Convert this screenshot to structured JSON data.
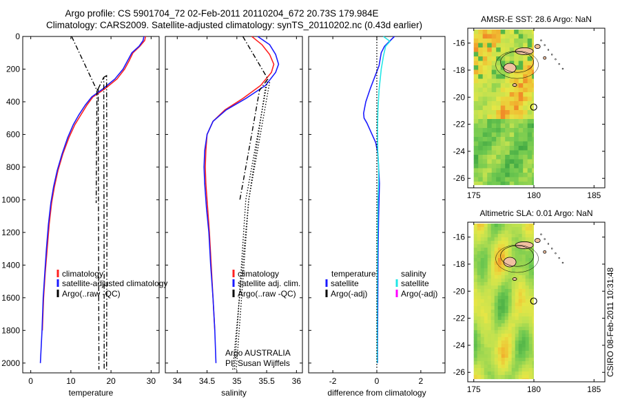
{
  "header": {
    "line1": "Argo profile: CS 5901704_72 02-Feb-2011 20110204_672 20.73S 179.984E",
    "line2": "Climatology: CARS2009. Satellite-adjusted climatology: synTS_20110202.nc (0.43d earlier)"
  },
  "stamp": "CSIRO 08-Feb-2011 10:31:48",
  "colors": {
    "climatology": "#ff2020",
    "satellite": "#1a1aff",
    "argo": "#000000",
    "sal_satellite": "#22e6e6",
    "sal_argo": "#ff00ff"
  },
  "chart_data": [
    {
      "type": "line",
      "panel": "temperature",
      "xlabel": "temperature",
      "xlim": [
        -2,
        32
      ],
      "ylim": [
        2060,
        0
      ],
      "y_reversed": true,
      "xticks": [
        0,
        10,
        20,
        30
      ],
      "yticks": [
        0,
        200,
        400,
        600,
        800,
        1000,
        1200,
        1400,
        1600,
        1800,
        2000
      ],
      "legend": [
        "climatology",
        "satellite-adjusted climatology",
        "Argo(..raw -QC)"
      ],
      "series": [
        {
          "name": "climatology",
          "style": "solid",
          "color": "#ff2020",
          "points": [
            [
              28.6,
              0
            ],
            [
              28.4,
              25
            ],
            [
              27.2,
              60
            ],
            [
              25.5,
              100
            ],
            [
              24.5,
              150
            ],
            [
              23.4,
              200
            ],
            [
              21.5,
              260
            ],
            [
              18.5,
              320
            ],
            [
              15.5,
              370
            ],
            [
              14,
              420
            ],
            [
              12.5,
              480
            ],
            [
              11,
              540
            ],
            [
              9.5,
              620
            ],
            [
              8,
              720
            ],
            [
              6.8,
              820
            ],
            [
              5.9,
              920
            ],
            [
              5.2,
              1020
            ],
            [
              4.6,
              1150
            ],
            [
              4.1,
              1300
            ],
            [
              3.6,
              1450
            ],
            [
              3.2,
              1600
            ],
            [
              2.9,
              1800
            ]
          ]
        },
        {
          "name": "satellite-adjusted climatology",
          "style": "solid",
          "color": "#1a1aff",
          "points": [
            [
              28.2,
              0
            ],
            [
              28,
              25
            ],
            [
              27,
              60
            ],
            [
              25.2,
              100
            ],
            [
              24.1,
              150
            ],
            [
              23,
              200
            ],
            [
              21,
              260
            ],
            [
              18,
              320
            ],
            [
              15.2,
              370
            ],
            [
              13.6,
              420
            ],
            [
              12,
              480
            ],
            [
              10.6,
              540
            ],
            [
              9.2,
              620
            ],
            [
              7.8,
              720
            ],
            [
              6.6,
              820
            ],
            [
              5.7,
              920
            ],
            [
              5,
              1020
            ],
            [
              4.4,
              1150
            ],
            [
              3.9,
              1300
            ],
            [
              3.5,
              1450
            ],
            [
              3.1,
              1600
            ],
            [
              2.8,
              1800
            ],
            [
              2.4,
              2000
            ]
          ]
        },
        {
          "name": "Argo(..raw -QC)",
          "style": "dashdot",
          "color": "#000000",
          "points": [
            [
              10.2,
              0
            ],
            [
              16.5,
              330
            ],
            [
              16.3,
              1020
            ]
          ]
        },
        {
          "name": "Argo(..raw -QC)",
          "style": "dashdot",
          "color": "#000000",
          "points": [
            [
              16.5,
              330
            ],
            [
              16.8,
              320
            ],
            [
              16.9,
              1250
            ],
            [
              17,
              2040
            ]
          ]
        },
        {
          "name": "Argo(..raw -QC)",
          "style": "dashdot",
          "color": "#000000",
          "points": [
            [
              16.8,
              320
            ],
            [
              18.2,
              250
            ],
            [
              18.3,
              1500
            ],
            [
              18.3,
              2040
            ]
          ]
        },
        {
          "name": "Argo(..raw -QC)",
          "style": "dashdot",
          "color": "#000000",
          "points": [
            [
              18.2,
              250
            ],
            [
              18.9,
              240
            ],
            [
              19,
              1100
            ],
            [
              18.9,
              2040
            ]
          ]
        }
      ]
    },
    {
      "type": "line",
      "panel": "salinity",
      "xlabel": "salinity",
      "xlim": [
        33.8,
        36.1
      ],
      "ylim": [
        2060,
        0
      ],
      "y_reversed": true,
      "xticks": [
        34,
        34.5,
        35,
        35.5,
        36
      ],
      "legend": [
        "climatology",
        "satellite adj. clim.",
        "Argo(..raw -QC)"
      ],
      "annotations": [
        "Argo AUSTRALIA",
        "PI: Susan Wijffels"
      ],
      "series": [
        {
          "name": "climatology",
          "style": "solid",
          "color": "#ff2020",
          "points": [
            [
              35.25,
              0
            ],
            [
              35.42,
              50
            ],
            [
              35.55,
              110
            ],
            [
              35.62,
              170
            ],
            [
              35.58,
              220
            ],
            [
              35.4,
              300
            ],
            [
              35.1,
              380
            ],
            [
              34.8,
              450
            ],
            [
              34.6,
              520
            ],
            [
              34.5,
              600
            ],
            [
              34.48,
              700
            ],
            [
              34.47,
              800
            ],
            [
              34.48,
              900
            ],
            [
              34.51,
              1050
            ],
            [
              34.54,
              1200
            ],
            [
              34.57,
              1400
            ],
            [
              34.6,
              1600
            ],
            [
              34.63,
              1800
            ]
          ]
        },
        {
          "name": "satellite adj. clim.",
          "style": "solid",
          "color": "#1a1aff",
          "points": [
            [
              35.35,
              0
            ],
            [
              35.55,
              50
            ],
            [
              35.65,
              110
            ],
            [
              35.7,
              170
            ],
            [
              35.65,
              220
            ],
            [
              35.48,
              300
            ],
            [
              35.15,
              380
            ],
            [
              34.82,
              450
            ],
            [
              34.6,
              520
            ],
            [
              34.5,
              600
            ],
            [
              34.46,
              700
            ],
            [
              34.45,
              800
            ],
            [
              34.46,
              900
            ],
            [
              34.49,
              1050
            ],
            [
              34.53,
              1200
            ],
            [
              34.56,
              1400
            ],
            [
              34.6,
              1600
            ],
            [
              34.63,
              1800
            ],
            [
              34.65,
              2000
            ]
          ]
        },
        {
          "name": "Argo(..raw -QC)",
          "style": "dashdot",
          "color": "#000000",
          "points": [
            [
              35.1,
              0
            ],
            [
              35.52,
              260
            ],
            [
              35.38,
              330
            ],
            [
              35.2,
              700
            ],
            [
              35.05,
              1000
            ]
          ]
        },
        {
          "name": "Argo(..raw -QC)",
          "style": "dotted",
          "color": "#000000",
          "points": [
            [
              35.52,
              260
            ],
            [
              35.5,
              300
            ],
            [
              35.15,
              1000
            ],
            [
              34.96,
              2040
            ]
          ]
        },
        {
          "name": "Argo(..raw -QC)",
          "style": "dotted",
          "color": "#000000",
          "points": [
            [
              35.55,
              280
            ],
            [
              35.2,
              1000
            ],
            [
              34.93,
              2040
            ]
          ]
        },
        {
          "name": "Argo(..raw -QC)",
          "style": "dotted",
          "color": "#000000",
          "points": [
            [
              35.48,
              310
            ],
            [
              35.2,
              1000
            ],
            [
              34.99,
              2040
            ]
          ]
        }
      ]
    },
    {
      "type": "line",
      "panel": "difference",
      "xlabel": "difference from climatology",
      "xlim": [
        -3.1,
        3.1
      ],
      "ylim": [
        2060,
        0
      ],
      "y_reversed": true,
      "xticks": [
        -2,
        0,
        2
      ],
      "legend": [
        "temperature",
        "satellite",
        "Argo(-adj)",
        "salinity",
        "satellite",
        "Argo(-adj)"
      ],
      "series": [
        {
          "name": "temperature satellite",
          "style": "solid",
          "color": "#1a1aff",
          "points": [
            [
              0.8,
              0
            ],
            [
              0.5,
              40
            ],
            [
              0.35,
              60
            ],
            [
              0.2,
              100
            ],
            [
              0.1,
              180
            ],
            [
              -0.1,
              250
            ],
            [
              -0.3,
              320
            ],
            [
              -0.5,
              400
            ],
            [
              -0.6,
              470
            ],
            [
              -0.58,
              500
            ],
            [
              -0.45,
              530
            ],
            [
              -0.25,
              590
            ],
            [
              -0.05,
              650
            ],
            [
              0.05,
              720
            ],
            [
              0.08,
              800
            ],
            [
              0.12,
              900
            ],
            [
              0.1,
              1000
            ],
            [
              0.08,
              1100
            ],
            [
              0.06,
              1300
            ],
            [
              0.05,
              1500
            ],
            [
              0.04,
              1700
            ],
            [
              0.03,
              1900
            ],
            [
              0.03,
              2000
            ]
          ]
        },
        {
          "name": "salinity satellite",
          "style": "solid",
          "color": "#22e6e6",
          "points": [
            [
              0.3,
              0
            ],
            [
              0.6,
              30
            ],
            [
              0.4,
              60
            ],
            [
              0.3,
              120
            ],
            [
              0.2,
              200
            ],
            [
              0.1,
              330
            ],
            [
              0.05,
              450
            ],
            [
              0.03,
              560
            ],
            [
              0.04,
              700
            ],
            [
              0.08,
              800
            ],
            [
              0.08,
              900
            ],
            [
              0.05,
              1000
            ],
            [
              0.03,
              1300
            ],
            [
              0.02,
              1600
            ],
            [
              0.02,
              2000
            ]
          ]
        },
        {
          "name": "zero",
          "style": "dotted",
          "color": "#000000",
          "points": [
            [
              0,
              0
            ],
            [
              0,
              2040
            ]
          ]
        }
      ]
    },
    {
      "type": "heatmap",
      "panel": "map-sst",
      "title": "AMSR-E SST: 28.6  Argo: NaN",
      "xlim": [
        174.5,
        185.9
      ],
      "ylim": [
        -26.7,
        -14.9
      ],
      "xticks": [
        175,
        180,
        185
      ],
      "yticks": [
        -16,
        -18,
        -20,
        -22,
        -24,
        -26
      ],
      "data_extent": [
        175,
        180,
        -26.5,
        -15
      ],
      "marker": {
        "lon": 179.984,
        "lat": -20.73
      }
    },
    {
      "type": "heatmap",
      "panel": "map-sla",
      "title": "Altimetric SLA: 0.01  Argo: NaN",
      "xlim": [
        174.5,
        185.9
      ],
      "ylim": [
        -26.7,
        -14.9
      ],
      "xticks": [
        175,
        180,
        185
      ],
      "yticks": [
        -16,
        -18,
        -20,
        -22,
        -24,
        -26
      ],
      "data_extent": [
        175,
        180,
        -26.5,
        -15
      ],
      "marker": {
        "lon": 179.984,
        "lat": -20.73
      }
    }
  ]
}
